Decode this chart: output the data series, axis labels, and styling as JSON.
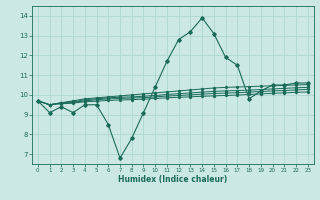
{
  "xlabel": "Humidex (Indice chaleur)",
  "ylabel": "",
  "xlim": [
    -0.5,
    23.5
  ],
  "ylim": [
    6.5,
    14.5
  ],
  "yticks": [
    7,
    8,
    9,
    10,
    11,
    12,
    13,
    14
  ],
  "xticks": [
    0,
    1,
    2,
    3,
    4,
    5,
    6,
    7,
    8,
    9,
    10,
    11,
    12,
    13,
    14,
    15,
    16,
    17,
    18,
    19,
    20,
    21,
    22,
    23
  ],
  "bg_color": "#cce8e4",
  "grid_color": "#aed8d0",
  "line_color": "#1a6b5a",
  "series": [
    [
      9.7,
      9.1,
      9.4,
      9.1,
      9.5,
      9.5,
      8.5,
      6.8,
      7.8,
      9.1,
      10.4,
      11.7,
      12.8,
      13.2,
      13.9,
      13.1,
      11.9,
      11.5,
      9.8,
      10.2,
      10.5,
      10.5,
      10.6,
      10.6
    ],
    [
      9.7,
      9.5,
      9.6,
      9.7,
      9.8,
      9.85,
      9.9,
      9.95,
      10.0,
      10.05,
      10.1,
      10.15,
      10.2,
      10.25,
      10.3,
      10.35,
      10.38,
      10.4,
      10.42,
      10.44,
      10.46,
      10.48,
      10.5,
      10.52
    ],
    [
      9.7,
      9.5,
      9.6,
      9.65,
      9.75,
      9.8,
      9.85,
      9.88,
      9.9,
      9.93,
      9.97,
      10.02,
      10.06,
      10.1,
      10.14,
      10.18,
      10.2,
      10.22,
      10.24,
      10.27,
      10.3,
      10.33,
      10.36,
      10.38
    ],
    [
      9.7,
      9.5,
      9.58,
      9.62,
      9.7,
      9.75,
      9.8,
      9.82,
      9.84,
      9.86,
      9.9,
      9.94,
      9.97,
      10.0,
      10.04,
      10.07,
      10.09,
      10.11,
      10.14,
      10.17,
      10.2,
      10.22,
      10.25,
      10.28
    ],
    [
      9.7,
      9.5,
      9.55,
      9.58,
      9.65,
      9.68,
      9.72,
      9.74,
      9.76,
      9.78,
      9.82,
      9.85,
      9.88,
      9.9,
      9.93,
      9.95,
      9.97,
      9.99,
      10.02,
      10.05,
      10.08,
      10.1,
      10.13,
      10.15
    ]
  ]
}
